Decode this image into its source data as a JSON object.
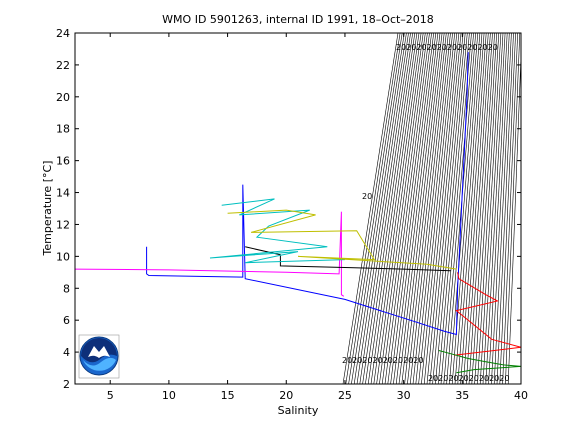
{
  "chart_data": {
    "type": "line",
    "title": "WMO ID 5901263, internal ID 1991, 18–Oct–2018",
    "xlabel": "Salinity",
    "ylabel": "Temperature [°C]",
    "xlim": [
      2,
      40
    ],
    "ylim": [
      2,
      24
    ],
    "xticks": [
      "5",
      "10",
      "15",
      "20",
      "25",
      "30",
      "35",
      "40"
    ],
    "yticks": [
      "2",
      "4",
      "6",
      "8",
      "10",
      "12",
      "14",
      "16",
      "18",
      "20",
      "22",
      "24"
    ],
    "grid": false,
    "legend": "none",
    "isopycnal_labels": {
      "top": "20202020202020202020",
      "bottom_left": "2020202020202020",
      "bottom_right": "2020202020202020",
      "mid": "20"
    },
    "series": [
      {
        "color": "#0000ff",
        "x": [
          8.1,
          8.1,
          8.3,
          16.3,
          16.3,
          16.5,
          25.0,
          31.0,
          33.5,
          34.5,
          34.6,
          34.8,
          35.0,
          35.2,
          35.3,
          35.4,
          35.5
        ],
        "y": [
          10.6,
          8.9,
          8.8,
          8.7,
          14.5,
          8.6,
          7.3,
          5.9,
          5.3,
          5.1,
          8.0,
          11.0,
          14.0,
          17.0,
          18.5,
          20.0,
          22.8
        ]
      },
      {
        "color": "#ff00ff",
        "x": [
          2.0,
          10.0,
          20.0,
          24.5,
          24.7,
          24.7,
          24.9
        ],
        "y": [
          9.2,
          9.15,
          9.0,
          8.9,
          12.8,
          7.6,
          7.5
        ]
      },
      {
        "color": "#000000",
        "x": [
          16.5,
          19.5,
          19.5,
          25.0,
          30.0,
          34.0
        ],
        "y": [
          10.6,
          10.1,
          9.4,
          9.3,
          9.2,
          9.1
        ]
      },
      {
        "color": "#00bfbf",
        "x": [
          14.5,
          19.0,
          16.0,
          22.0,
          18.5,
          17.5,
          23.5,
          13.5,
          21.0,
          16.5,
          25.0
        ],
        "y": [
          13.2,
          13.6,
          12.6,
          12.9,
          11.9,
          11.2,
          10.6,
          9.9,
          10.3,
          9.6,
          9.8
        ]
      },
      {
        "color": "#bfbf00",
        "x": [
          15.0,
          20.0,
          22.5,
          17.0,
          26.0,
          27.5,
          21.0,
          32.0,
          34.5
        ],
        "y": [
          12.7,
          12.9,
          12.6,
          11.5,
          11.6,
          9.8,
          10.0,
          9.5,
          9.2
        ]
      },
      {
        "color": "#ff0000",
        "x": [
          34.6,
          34.7,
          37.0,
          38.0,
          34.5,
          37.5,
          40.0,
          34.3
        ],
        "y": [
          9.0,
          8.6,
          7.6,
          7.2,
          6.6,
          4.8,
          4.3,
          3.8
        ]
      },
      {
        "color": "#008000",
        "x": [
          33.0,
          34.0,
          35.5,
          37.0,
          38.5,
          40.0,
          36.0,
          34.5
        ],
        "y": [
          4.1,
          3.9,
          3.6,
          3.4,
          3.2,
          3.1,
          2.9,
          2.7
        ]
      }
    ]
  }
}
